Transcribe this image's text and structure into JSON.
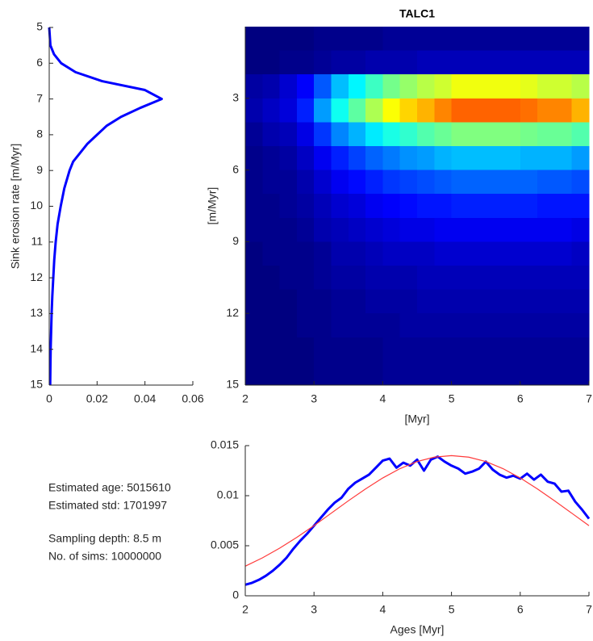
{
  "chart_data": [
    {
      "type": "line",
      "orientation": "vertical",
      "ylabel": "Sink erosion rate [m/Myr]",
      "xlim": [
        0,
        0.06
      ],
      "xticks": [
        0,
        0.02,
        0.04,
        0.06
      ],
      "ylim": [
        5,
        15
      ],
      "yticks": [
        5,
        6,
        7,
        8,
        9,
        10,
        11,
        12,
        13,
        14,
        15
      ],
      "y_direction": "reverse",
      "series": [
        {
          "color": "#0000ff",
          "y": [
            5,
            5.5,
            5.75,
            6,
            6.25,
            6.5,
            6.75,
            7,
            7.25,
            7.5,
            7.75,
            8,
            8.25,
            8.5,
            8.75,
            9,
            9.5,
            10,
            10.5,
            11,
            11.5,
            12,
            12.5,
            13,
            13.5,
            14,
            14.5,
            15
          ],
          "values": [
            0,
            0.0005,
            0.002,
            0.005,
            0.011,
            0.022,
            0.04,
            0.047,
            0.038,
            0.03,
            0.024,
            0.02,
            0.016,
            0.013,
            0.01,
            0.0085,
            0.0063,
            0.0048,
            0.0035,
            0.0027,
            0.0021,
            0.0017,
            0.0013,
            0.001,
            0.0008,
            0.0006,
            0.0005,
            0.0004
          ]
        }
      ]
    },
    {
      "type": "heatmap",
      "title": "TALC1",
      "xlabel": "[Myr]",
      "ylabel": "[m/Myr]",
      "xlim": [
        2,
        7
      ],
      "xticks": [
        2,
        3,
        4,
        5,
        6,
        7
      ],
      "ylim": [
        0,
        15
      ],
      "yticks": [
        3,
        6,
        9,
        12,
        15
      ],
      "y_direction": "reverse",
      "colormap": "jet",
      "clim": [
        0,
        0.9
      ],
      "xbins": [
        2,
        2.25,
        2.5,
        2.75,
        3,
        3.25,
        3.5,
        3.75,
        4,
        4.25,
        4.5,
        4.75,
        5,
        5.25,
        5.5,
        5.75,
        6,
        6.25,
        6.5,
        6.75,
        7
      ],
      "ybins": [
        0,
        1,
        2,
        3,
        4,
        5,
        6,
        7,
        8,
        9,
        10,
        11,
        12,
        13,
        14,
        15
      ],
      "z": [
        [
          0,
          0,
          0,
          0,
          0.01,
          0.01,
          0.01,
          0.01,
          0.02,
          0.02,
          0.02,
          0.02,
          0.02,
          0.02,
          0.02,
          0.02,
          0.02,
          0.02,
          0.02,
          0.02
        ],
        [
          0,
          0,
          0.01,
          0.01,
          0.02,
          0.03,
          0.03,
          0.04,
          0.04,
          0.04,
          0.05,
          0.05,
          0.05,
          0.05,
          0.05,
          0.05,
          0.05,
          0.05,
          0.05,
          0.05
        ],
        [
          0.03,
          0.04,
          0.07,
          0.11,
          0.19,
          0.28,
          0.33,
          0.39,
          0.44,
          0.47,
          0.5,
          0.52,
          0.55,
          0.55,
          0.55,
          0.55,
          0.54,
          0.52,
          0.52,
          0.5
        ],
        [
          0.04,
          0.06,
          0.08,
          0.14,
          0.25,
          0.35,
          0.42,
          0.49,
          0.56,
          0.6,
          0.63,
          0.67,
          0.7,
          0.7,
          0.7,
          0.7,
          0.69,
          0.67,
          0.67,
          0.63
        ],
        [
          0.02,
          0.04,
          0.05,
          0.09,
          0.16,
          0.23,
          0.27,
          0.32,
          0.36,
          0.38,
          0.41,
          0.43,
          0.45,
          0.45,
          0.45,
          0.45,
          0.44,
          0.43,
          0.43,
          0.41
        ],
        [
          0.01,
          0.02,
          0.03,
          0.06,
          0.1,
          0.14,
          0.17,
          0.2,
          0.22,
          0.24,
          0.25,
          0.27,
          0.28,
          0.28,
          0.28,
          0.28,
          0.27,
          0.27,
          0.27,
          0.25
        ],
        [
          0.01,
          0.02,
          0.02,
          0.04,
          0.07,
          0.1,
          0.12,
          0.14,
          0.16,
          0.17,
          0.18,
          0.19,
          0.2,
          0.2,
          0.2,
          0.2,
          0.2,
          0.19,
          0.19,
          0.18
        ],
        [
          0.01,
          0.01,
          0.02,
          0.03,
          0.05,
          0.07,
          0.08,
          0.1,
          0.11,
          0.12,
          0.13,
          0.13,
          0.14,
          0.14,
          0.14,
          0.14,
          0.14,
          0.13,
          0.13,
          0.13
        ],
        [
          0.01,
          0.01,
          0.01,
          0.02,
          0.04,
          0.05,
          0.06,
          0.07,
          0.08,
          0.09,
          0.09,
          0.1,
          0.1,
          0.1,
          0.1,
          0.1,
          0.1,
          0.1,
          0.1,
          0.09
        ],
        [
          0,
          0.01,
          0.01,
          0.01,
          0.02,
          0.04,
          0.04,
          0.05,
          0.06,
          0.06,
          0.06,
          0.07,
          0.07,
          0.07,
          0.07,
          0.07,
          0.07,
          0.07,
          0.07,
          0.06
        ],
        [
          0,
          0,
          0.01,
          0.01,
          0.02,
          0.03,
          0.03,
          0.04,
          0.04,
          0.04,
          0.05,
          0.05,
          0.05,
          0.05,
          0.05,
          0.05,
          0.05,
          0.05,
          0.05,
          0.05
        ],
        [
          0,
          0,
          0,
          0.01,
          0.01,
          0.02,
          0.02,
          0.03,
          0.03,
          0.03,
          0.04,
          0.04,
          0.04,
          0.04,
          0.04,
          0.04,
          0.04,
          0.04,
          0.04,
          0.04
        ],
        [
          0,
          0,
          0,
          0.01,
          0.01,
          0.02,
          0.02,
          0.02,
          0.02,
          0.03,
          0.03,
          0.03,
          0.03,
          0.03,
          0.03,
          0.03,
          0.03,
          0.03,
          0.03,
          0.03
        ],
        [
          0,
          0,
          0,
          0,
          0.01,
          0.01,
          0.01,
          0.01,
          0.02,
          0.02,
          0.02,
          0.02,
          0.02,
          0.02,
          0.02,
          0.02,
          0.02,
          0.02,
          0.02,
          0.02
        ],
        [
          0,
          0,
          0,
          0,
          0.01,
          0.01,
          0.01,
          0.01,
          0.02,
          0.02,
          0.02,
          0.02,
          0.02,
          0.02,
          0.02,
          0.02,
          0.02,
          0.02,
          0.02,
          0.02
        ]
      ]
    },
    {
      "type": "line",
      "orientation": "horizontal",
      "xlabel": "Ages [Myr]",
      "xlim": [
        2,
        7
      ],
      "xticks": [
        2,
        3,
        4,
        5,
        6,
        7
      ],
      "ylim": [
        0,
        0.015
      ],
      "yticks": [
        0,
        0.005,
        0.01,
        0.015
      ],
      "series": [
        {
          "color": "#0000ff",
          "width": 3,
          "x": [
            2,
            2.1,
            2.2,
            2.3,
            2.4,
            2.5,
            2.6,
            2.7,
            2.8,
            2.9,
            3,
            3.1,
            3.2,
            3.3,
            3.4,
            3.5,
            3.6,
            3.7,
            3.8,
            3.9,
            4,
            4.1,
            4.2,
            4.3,
            4.4,
            4.5,
            4.6,
            4.7,
            4.8,
            4.9,
            5,
            5.1,
            5.2,
            5.3,
            5.4,
            5.5,
            5.6,
            5.7,
            5.8,
            5.9,
            6,
            6.1,
            6.2,
            6.3,
            6.4,
            6.5,
            6.6,
            6.7,
            6.8,
            6.9,
            7
          ],
          "values": [
            0.0011,
            0.0013,
            0.0016,
            0.002,
            0.0025,
            0.0031,
            0.0038,
            0.0047,
            0.0055,
            0.0062,
            0.007,
            0.0078,
            0.0086,
            0.0093,
            0.0098,
            0.0107,
            0.0113,
            0.0117,
            0.0121,
            0.0128,
            0.0135,
            0.0137,
            0.0128,
            0.0133,
            0.013,
            0.0136,
            0.0125,
            0.0136,
            0.0139,
            0.0134,
            0.013,
            0.0127,
            0.0122,
            0.0124,
            0.0127,
            0.0134,
            0.0126,
            0.0121,
            0.0118,
            0.012,
            0.0117,
            0.0122,
            0.0116,
            0.0121,
            0.0114,
            0.0112,
            0.0104,
            0.0105,
            0.0094,
            0.0086,
            0.0077
          ]
        },
        {
          "color": "#ff3b3b",
          "width": 1.2,
          "x": [
            2,
            2.25,
            2.5,
            2.75,
            3,
            3.25,
            3.5,
            3.75,
            4,
            4.25,
            4.5,
            4.75,
            5,
            5.25,
            5.5,
            5.75,
            6,
            6.25,
            6.5,
            6.75,
            7
          ],
          "values": [
            0.00296,
            0.00379,
            0.00476,
            0.00584,
            0.00701,
            0.00825,
            0.00949,
            0.01068,
            0.01177,
            0.0127,
            0.01341,
            0.01385,
            0.014,
            0.01385,
            0.01341,
            0.0127,
            0.01177,
            0.01068,
            0.00949,
            0.00825,
            0.00701
          ]
        }
      ]
    }
  ],
  "annotations": [
    "Estimated age: 5015610",
    "Estimated std: 1701997",
    "Sampling depth: 8.5 m",
    "No. of sims: 10000000"
  ]
}
